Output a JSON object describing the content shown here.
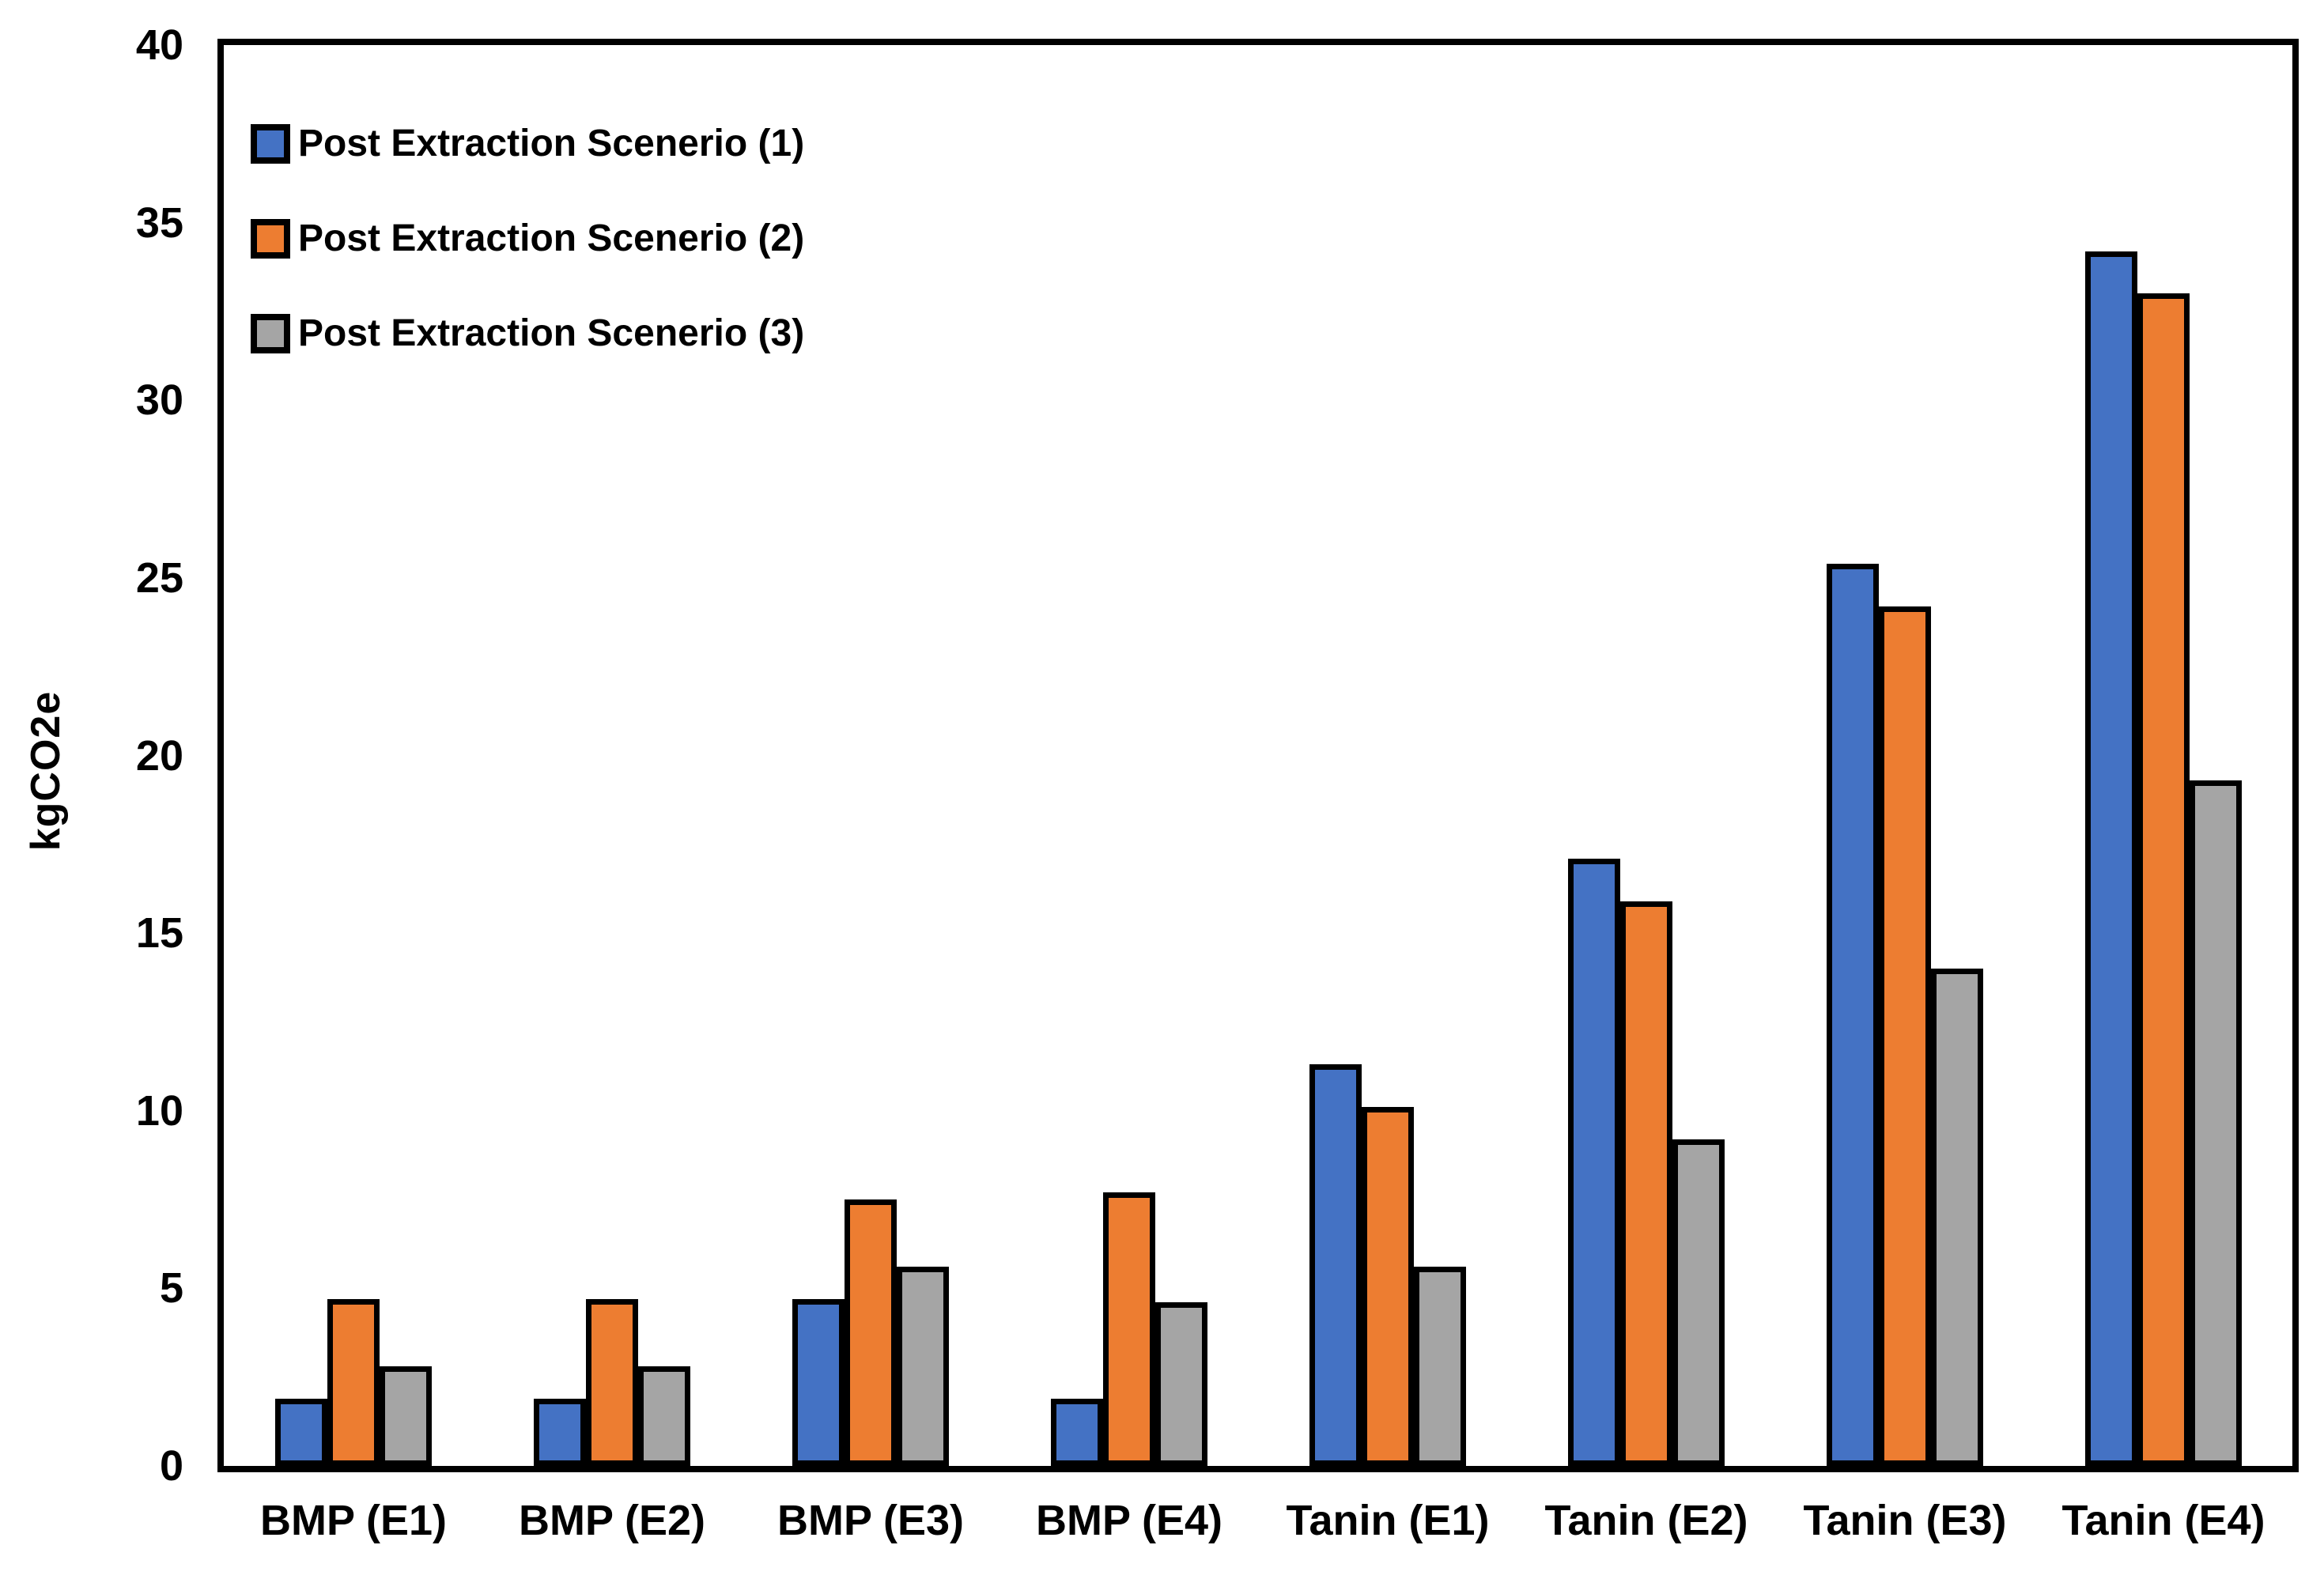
{
  "chart_data": {
    "type": "bar",
    "title": "",
    "xlabel": "",
    "ylabel": "kgCO2e",
    "ylim": [
      0,
      40
    ],
    "yticks": [
      0,
      5,
      10,
      15,
      20,
      25,
      30,
      35,
      40
    ],
    "grid": false,
    "legend_position": "top-left-inside",
    "categories": [
      "BMP (E1)",
      "BMP (E2)",
      "BMP (E3)",
      "BMP (E4)",
      "Tanin (E1)",
      "Tanin (E2)",
      "Tanin (E3)",
      "Tanin (E4)"
    ],
    "series": [
      {
        "name": "Post Extraction Scenerio (1)",
        "color": "#4472C4",
        "values": [
          1.9,
          1.9,
          4.7,
          1.9,
          11.3,
          17.1,
          25.4,
          34.2
        ]
      },
      {
        "name": "Post Extraction Scenerio (2)",
        "color": "#ED7D31",
        "values": [
          4.7,
          4.7,
          7.5,
          7.7,
          10.1,
          15.9,
          24.2,
          33.0
        ]
      },
      {
        "name": "Post Extraction Scenerio (3)",
        "color": "#A5A5A5",
        "values": [
          2.8,
          2.8,
          5.6,
          4.6,
          5.6,
          9.2,
          14.0,
          19.3
        ]
      }
    ],
    "colors": {
      "axis": "#000000",
      "background": "#FFFFFF"
    }
  }
}
